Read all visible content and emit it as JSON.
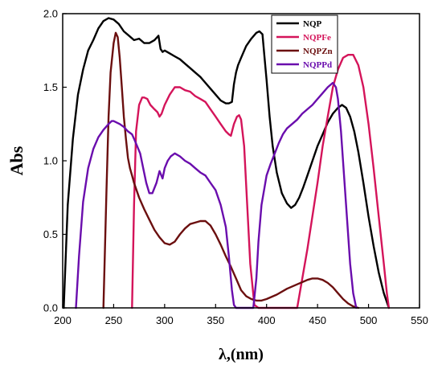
{
  "chart_data": {
    "type": "line",
    "xlabel": "λ,(nm)",
    "ylabel": "Abs",
    "xlim": [
      200,
      550
    ],
    "ylim": [
      0,
      2.0
    ],
    "x_ticks": [
      200,
      250,
      300,
      350,
      400,
      450,
      500,
      550
    ],
    "y_ticks": [
      0.0,
      0.5,
      1.0,
      1.5,
      2.0
    ],
    "x_tick_labels": [
      "200",
      "250",
      "300",
      "350",
      "400",
      "450",
      "500",
      "550"
    ],
    "y_tick_labels": [
      "0.0",
      "0.5",
      "1.0",
      "1.5",
      "2.0"
    ],
    "grid": false,
    "legend_position": "top-right",
    "series": [
      {
        "name": "NQP",
        "color": "#000000",
        "x": [
          201,
          205,
          210,
          215,
          220,
          225,
          230,
          235,
          240,
          245,
          250,
          255,
          260,
          265,
          270,
          275,
          280,
          285,
          290,
          294,
          296,
          298,
          300,
          305,
          310,
          315,
          320,
          325,
          330,
          335,
          340,
          345,
          350,
          355,
          360,
          363,
          366,
          368,
          370,
          372,
          375,
          380,
          385,
          390,
          393,
          396,
          398,
          400,
          403,
          406,
          410,
          415,
          420,
          424,
          428,
          432,
          436,
          440,
          445,
          450,
          455,
          460,
          465,
          470,
          474,
          478,
          482,
          486,
          490,
          495,
          500,
          505,
          510,
          515,
          520
        ],
        "values": [
          0.0,
          0.7,
          1.15,
          1.45,
          1.62,
          1.75,
          1.82,
          1.9,
          1.95,
          1.97,
          1.96,
          1.93,
          1.88,
          1.85,
          1.82,
          1.83,
          1.8,
          1.8,
          1.82,
          1.85,
          1.76,
          1.74,
          1.75,
          1.73,
          1.71,
          1.69,
          1.66,
          1.63,
          1.6,
          1.57,
          1.53,
          1.49,
          1.45,
          1.41,
          1.39,
          1.39,
          1.4,
          1.52,
          1.6,
          1.65,
          1.7,
          1.78,
          1.83,
          1.87,
          1.88,
          1.86,
          1.7,
          1.55,
          1.3,
          1.1,
          0.92,
          0.78,
          0.71,
          0.68,
          0.7,
          0.75,
          0.82,
          0.9,
          1.0,
          1.1,
          1.18,
          1.26,
          1.32,
          1.36,
          1.38,
          1.36,
          1.3,
          1.2,
          1.06,
          0.85,
          0.62,
          0.42,
          0.24,
          0.1,
          0.0
        ]
      },
      {
        "name": "NQPFe",
        "color": "#d4145a",
        "x": [
          268,
          270,
          272,
          275,
          278,
          280,
          283,
          286,
          290,
          293,
          295,
          297,
          300,
          305,
          310,
          315,
          320,
          325,
          330,
          335,
          340,
          345,
          350,
          355,
          360,
          363,
          365,
          368,
          371,
          373,
          375,
          378,
          381,
          384,
          388,
          392,
          396,
          400,
          405,
          410,
          415,
          420,
          425,
          430,
          440,
          450,
          455,
          460,
          465,
          470,
          475,
          480,
          485,
          490,
          495,
          500,
          505,
          510,
          515,
          518,
          520
        ],
        "values": [
          0.0,
          0.7,
          1.2,
          1.38,
          1.43,
          1.43,
          1.42,
          1.38,
          1.35,
          1.33,
          1.3,
          1.32,
          1.38,
          1.45,
          1.5,
          1.5,
          1.48,
          1.47,
          1.44,
          1.42,
          1.4,
          1.35,
          1.3,
          1.25,
          1.2,
          1.18,
          1.17,
          1.25,
          1.3,
          1.31,
          1.28,
          1.1,
          0.7,
          0.3,
          0.02,
          0.0,
          0.0,
          0.0,
          0.0,
          0.0,
          0.0,
          0.0,
          0.0,
          0.0,
          0.4,
          0.85,
          1.1,
          1.3,
          1.5,
          1.62,
          1.7,
          1.72,
          1.72,
          1.65,
          1.5,
          1.25,
          0.95,
          0.62,
          0.3,
          0.1,
          0.0
        ]
      },
      {
        "name": "NQPZn",
        "color": "#6b0f0f",
        "x": [
          240,
          243,
          245,
          247,
          250,
          252,
          254,
          256,
          258,
          260,
          262,
          264,
          266,
          268,
          270,
          275,
          280,
          285,
          290,
          295,
          300,
          305,
          310,
          315,
          320,
          325,
          330,
          335,
          340,
          345,
          350,
          355,
          360,
          365,
          370,
          375,
          380,
          385,
          390,
          395,
          400,
          410,
          420,
          430,
          440,
          445,
          450,
          455,
          460,
          465,
          470,
          475,
          480,
          485,
          490
        ],
        "values": [
          0.0,
          0.8,
          1.3,
          1.6,
          1.8,
          1.87,
          1.84,
          1.7,
          1.5,
          1.3,
          1.15,
          1.02,
          0.95,
          0.9,
          0.85,
          0.75,
          0.67,
          0.6,
          0.53,
          0.48,
          0.44,
          0.43,
          0.45,
          0.5,
          0.54,
          0.57,
          0.58,
          0.59,
          0.59,
          0.56,
          0.5,
          0.43,
          0.35,
          0.28,
          0.2,
          0.12,
          0.08,
          0.06,
          0.05,
          0.05,
          0.06,
          0.09,
          0.13,
          0.16,
          0.19,
          0.2,
          0.2,
          0.19,
          0.17,
          0.14,
          0.1,
          0.06,
          0.03,
          0.01,
          0.0
        ]
      },
      {
        "name": "NQPPd",
        "color": "#6a0dad",
        "x": [
          213,
          216,
          220,
          225,
          230,
          235,
          240,
          245,
          248,
          250,
          253,
          256,
          260,
          264,
          268,
          270,
          273,
          276,
          279,
          282,
          285,
          288,
          292,
          295,
          298,
          300,
          303,
          306,
          310,
          315,
          320,
          325,
          330,
          335,
          340,
          345,
          350,
          355,
          360,
          363,
          366,
          368,
          370,
          380,
          387,
          390,
          392,
          395,
          398,
          400,
          404,
          408,
          412,
          416,
          420,
          425,
          430,
          435,
          440,
          445,
          450,
          455,
          460,
          465,
          468,
          470,
          473,
          476,
          479,
          482,
          485,
          488
        ],
        "values": [
          0.0,
          0.35,
          0.72,
          0.95,
          1.08,
          1.16,
          1.21,
          1.25,
          1.27,
          1.27,
          1.26,
          1.25,
          1.23,
          1.2,
          1.18,
          1.15,
          1.1,
          1.05,
          0.95,
          0.85,
          0.78,
          0.78,
          0.85,
          0.93,
          0.88,
          0.95,
          1.0,
          1.03,
          1.05,
          1.03,
          1.0,
          0.98,
          0.95,
          0.92,
          0.9,
          0.85,
          0.8,
          0.7,
          0.55,
          0.35,
          0.12,
          0.02,
          0.0,
          0.0,
          0.0,
          0.2,
          0.45,
          0.7,
          0.82,
          0.9,
          0.98,
          1.05,
          1.12,
          1.18,
          1.22,
          1.25,
          1.28,
          1.32,
          1.35,
          1.38,
          1.42,
          1.46,
          1.5,
          1.53,
          1.5,
          1.42,
          1.2,
          0.9,
          0.6,
          0.3,
          0.1,
          0.0
        ]
      }
    ]
  }
}
